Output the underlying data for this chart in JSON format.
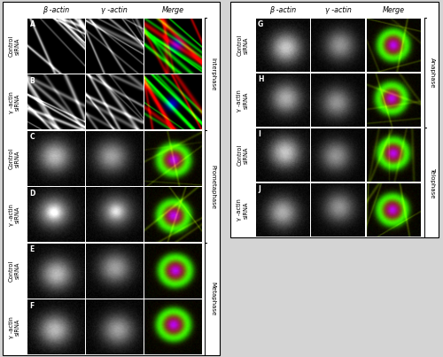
{
  "fig_width": 5.0,
  "fig_height": 4.03,
  "dpi": 100,
  "bg_color": "#d4d4d4",
  "left_panel": {
    "col_headers": [
      "β -actin",
      "γ -actin",
      "Merge"
    ],
    "rows": [
      {
        "label": "A",
        "row_label": "Control\nsiRNA"
      },
      {
        "label": "B",
        "row_label": "γ -actin\nsiRNA"
      },
      {
        "label": "C",
        "row_label": "Control\nsiRNA"
      },
      {
        "label": "D",
        "row_label": "γ -actin\nsiRNA"
      },
      {
        "label": "E",
        "row_label": "Control\nsiRNA"
      },
      {
        "label": "F",
        "row_label": "γ -actin\nsiRNA"
      }
    ],
    "phase_brackets": [
      {
        "rows": [
          0,
          1
        ],
        "label": "Interphase"
      },
      {
        "rows": [
          2,
          3
        ],
        "label": "Prometaphase"
      },
      {
        "rows": [
          4,
          5
        ],
        "label": "Metaphase"
      }
    ]
  },
  "right_panel": {
    "col_headers": [
      "β -actin",
      "γ -actin",
      "Merge"
    ],
    "rows": [
      {
        "label": "G",
        "row_label": "Control\nsiRNA"
      },
      {
        "label": "H",
        "row_label": "γ -actin\nsiRNA"
      },
      {
        "label": "I",
        "row_label": "Control\nsiRNA"
      },
      {
        "label": "J",
        "row_label": "γ -actin\nsiRNA"
      }
    ],
    "phase_brackets": [
      {
        "rows": [
          0,
          1
        ],
        "label": "Anaphase"
      },
      {
        "rows": [
          2,
          3
        ],
        "label": "Telophase"
      }
    ]
  }
}
